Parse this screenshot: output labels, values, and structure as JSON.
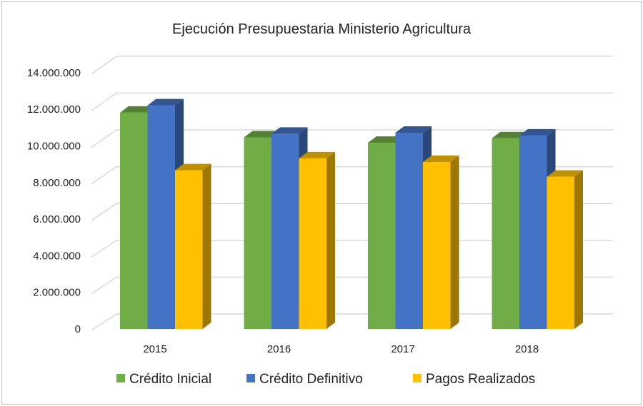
{
  "chart_data": {
    "type": "bar",
    "style": "3d-clustered-column",
    "title": "Ejecución Presupuestaria Ministerio Agricultura",
    "xlabel": "",
    "ylabel": "",
    "categories": [
      "2015",
      "2016",
      "2017",
      "2018"
    ],
    "ylim": [
      0,
      14000000
    ],
    "y_ticks": [
      "0",
      "2.000.000",
      "4.000.000",
      "6.000.000",
      "8.000.000",
      "10.000.000",
      "12.000.000",
      "14.000.000"
    ],
    "grid": true,
    "legend_position": "bottom",
    "series": [
      {
        "name": "Crédito Inicial",
        "color": "#70AD47",
        "values": [
          11550000,
          10200000,
          9900000,
          10150000
        ]
      },
      {
        "name": "Crédito Definitivo",
        "color": "#4472C4",
        "values": [
          11950000,
          10400000,
          10450000,
          10300000
        ]
      },
      {
        "name": "Pagos Realizados",
        "color": "#FFC000",
        "values": [
          8400000,
          9050000,
          8850000,
          8050000
        ]
      }
    ]
  }
}
